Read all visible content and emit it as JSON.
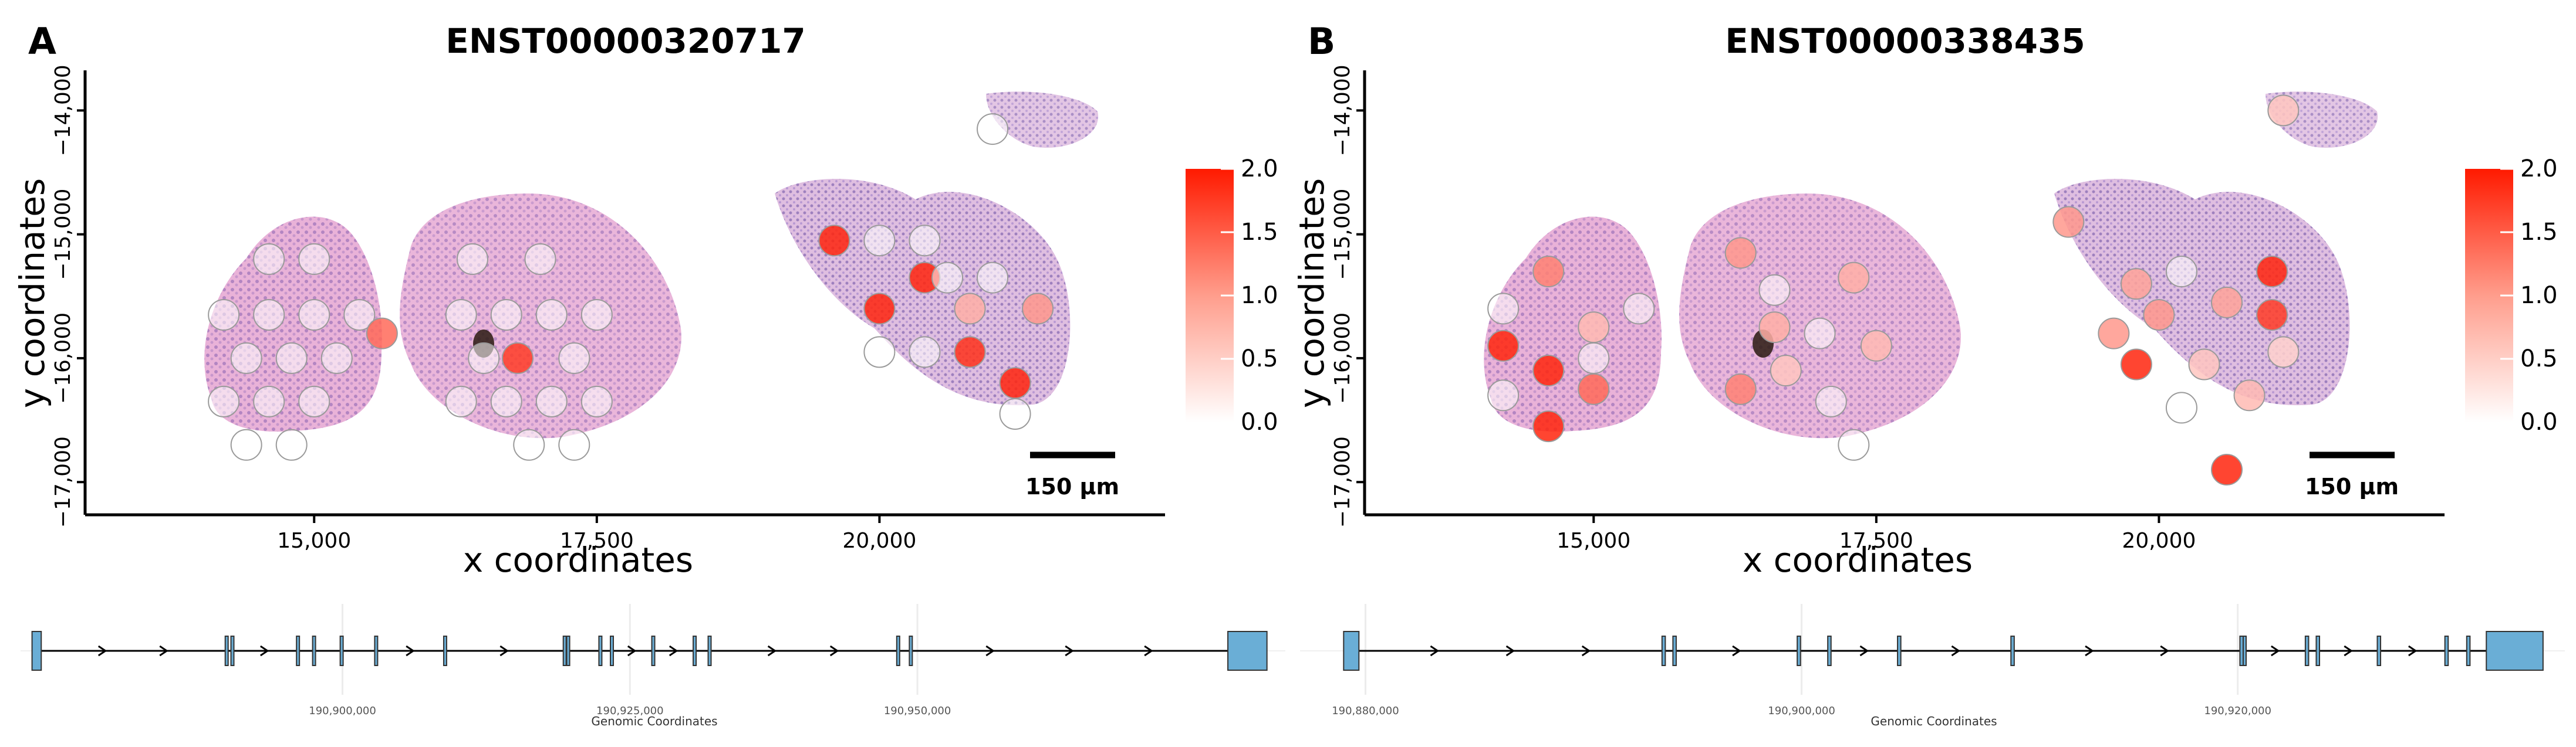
{
  "chart_data": [
    {
      "panel_label": "A",
      "type": "scatter",
      "title": "ENST00000320717",
      "xlabel": "x coordinates",
      "ylabel": "y coordinates",
      "xlim": [
        13000,
        22500
      ],
      "ylim": [
        -17250,
        -13700
      ],
      "x_ticks": [
        15000,
        17500,
        20000
      ],
      "x_tick_labels": [
        "15,000",
        "17,500",
        "20,000"
      ],
      "y_ticks": [
        -14000,
        -15000,
        -16000,
        -17000
      ],
      "y_tick_labels": [
        "−14,000",
        "−15,000",
        "−16,000",
        "−17,000"
      ],
      "colorbar": {
        "min": 0.0,
        "max": 2.0,
        "tick_values": [
          0.0,
          0.5,
          1.0,
          1.5,
          2.0
        ],
        "tick_labels": [
          "0.0",
          "0.5",
          "1.0",
          "1.5",
          "2.0"
        ],
        "low_color": "#ffffff",
        "high_color": "#ff0000"
      },
      "scalebar_label": "150 μm",
      "spots": [
        {
          "x": 14200,
          "y": -15650,
          "v": 0.0
        },
        {
          "x": 14600,
          "y": -15650,
          "v": 0.0
        },
        {
          "x": 15000,
          "y": -15650,
          "v": 0.0
        },
        {
          "x": 14400,
          "y": -16000,
          "v": 0.0
        },
        {
          "x": 14800,
          "y": -16000,
          "v": 0.0
        },
        {
          "x": 15200,
          "y": -16000,
          "v": 0.0
        },
        {
          "x": 14200,
          "y": -16350,
          "v": 0.0
        },
        {
          "x": 14600,
          "y": -16350,
          "v": 0.0
        },
        {
          "x": 15000,
          "y": -16350,
          "v": 0.0
        },
        {
          "x": 14400,
          "y": -16700,
          "v": 0.0
        },
        {
          "x": 14800,
          "y": -16700,
          "v": 0.0
        },
        {
          "x": 14600,
          "y": -15200,
          "v": 0.0
        },
        {
          "x": 15000,
          "y": -15200,
          "v": 0.0
        },
        {
          "x": 15400,
          "y": -15650,
          "v": 0.0
        },
        {
          "x": 15600,
          "y": -15800,
          "v": 1.3
        },
        {
          "x": 16300,
          "y": -15650,
          "v": 0.0
        },
        {
          "x": 16700,
          "y": -15650,
          "v": 0.0
        },
        {
          "x": 17100,
          "y": -15650,
          "v": 0.0
        },
        {
          "x": 17500,
          "y": -15650,
          "v": 0.0
        },
        {
          "x": 16500,
          "y": -16000,
          "v": 0.0
        },
        {
          "x": 16800,
          "y": -16000,
          "v": 1.7
        },
        {
          "x": 17300,
          "y": -16000,
          "v": 0.0
        },
        {
          "x": 16700,
          "y": -16350,
          "v": 0.0
        },
        {
          "x": 17100,
          "y": -16350,
          "v": 0.0
        },
        {
          "x": 17500,
          "y": -16350,
          "v": 0.0
        },
        {
          "x": 16900,
          "y": -16700,
          "v": 0.0
        },
        {
          "x": 17300,
          "y": -16700,
          "v": 0.0
        },
        {
          "x": 16300,
          "y": -16350,
          "v": 0.0
        },
        {
          "x": 16400,
          "y": -15200,
          "v": 0.0
        },
        {
          "x": 17000,
          "y": -15200,
          "v": 0.0
        },
        {
          "x": 19600,
          "y": -15050,
          "v": 1.9
        },
        {
          "x": 20400,
          "y": -15350,
          "v": 1.9
        },
        {
          "x": 20000,
          "y": -15600,
          "v": 1.9
        },
        {
          "x": 20800,
          "y": -15600,
          "v": 0.7
        },
        {
          "x": 21400,
          "y": -15600,
          "v": 0.9
        },
        {
          "x": 20800,
          "y": -15950,
          "v": 1.8
        },
        {
          "x": 21200,
          "y": -16200,
          "v": 1.9
        },
        {
          "x": 20000,
          "y": -15050,
          "v": 0.0
        },
        {
          "x": 20400,
          "y": -15050,
          "v": 0.0
        },
        {
          "x": 20600,
          "y": -15350,
          "v": 0.0
        },
        {
          "x": 21000,
          "y": -15350,
          "v": 0.0
        },
        {
          "x": 20400,
          "y": -15950,
          "v": 0.0
        },
        {
          "x": 20000,
          "y": -15950,
          "v": 0.0
        },
        {
          "x": 21200,
          "y": -16450,
          "v": 0.0
        },
        {
          "x": 21000,
          "y": -14150,
          "v": 0.0
        }
      ]
    },
    {
      "panel_label": "B",
      "type": "scatter",
      "title": "ENST00000338435",
      "xlabel": "x coordinates",
      "ylabel": "y coordinates",
      "xlim": [
        13000,
        22500
      ],
      "ylim": [
        -17250,
        -13700
      ],
      "x_ticks": [
        15000,
        17500,
        20000
      ],
      "x_tick_labels": [
        "15,000",
        "17,500",
        "20,000"
      ],
      "y_ticks": [
        -14000,
        -15000,
        -16000,
        -17000
      ],
      "y_tick_labels": [
        "−14,000",
        "−15,000",
        "−16,000",
        "−17,000"
      ],
      "colorbar": {
        "min": 0.0,
        "max": 2.0,
        "tick_values": [
          0.0,
          0.5,
          1.0,
          1.5,
          2.0
        ],
        "tick_labels": [
          "0.0",
          "0.5",
          "1.0",
          "1.5",
          "2.0"
        ],
        "low_color": "#ffffff",
        "high_color": "#ff0000"
      },
      "scalebar_label": "150 μm",
      "spots": [
        {
          "x": 14600,
          "y": -15300,
          "v": 1.1
        },
        {
          "x": 14200,
          "y": -15900,
          "v": 1.9
        },
        {
          "x": 14600,
          "y": -16100,
          "v": 1.9
        },
        {
          "x": 15000,
          "y": -16250,
          "v": 1.3
        },
        {
          "x": 14600,
          "y": -16550,
          "v": 1.9
        },
        {
          "x": 15000,
          "y": -15750,
          "v": 0.6
        },
        {
          "x": 16300,
          "y": -15150,
          "v": 0.9
        },
        {
          "x": 17300,
          "y": -15350,
          "v": 0.7
        },
        {
          "x": 16600,
          "y": -15750,
          "v": 0.7
        },
        {
          "x": 16300,
          "y": -16250,
          "v": 1.1
        },
        {
          "x": 16700,
          "y": -16100,
          "v": 0.5
        },
        {
          "x": 17500,
          "y": -15900,
          "v": 0.6
        },
        {
          "x": 19200,
          "y": -14900,
          "v": 0.9
        },
        {
          "x": 19800,
          "y": -15400,
          "v": 0.8
        },
        {
          "x": 19600,
          "y": -15800,
          "v": 0.9
        },
        {
          "x": 20000,
          "y": -15650,
          "v": 0.9
        },
        {
          "x": 20600,
          "y": -15550,
          "v": 0.8
        },
        {
          "x": 21000,
          "y": -15300,
          "v": 1.9
        },
        {
          "x": 21000,
          "y": -15650,
          "v": 1.7
        },
        {
          "x": 19800,
          "y": -16050,
          "v": 1.9
        },
        {
          "x": 20400,
          "y": -16050,
          "v": 0.5
        },
        {
          "x": 20800,
          "y": -16300,
          "v": 0.6
        },
        {
          "x": 20600,
          "y": -16900,
          "v": 1.9
        },
        {
          "x": 21100,
          "y": -15950,
          "v": 0.4
        },
        {
          "x": 21100,
          "y": -14000,
          "v": 0.5
        },
        {
          "x": 14200,
          "y": -15600,
          "v": 0.0
        },
        {
          "x": 14200,
          "y": -16300,
          "v": 0.0
        },
        {
          "x": 15000,
          "y": -16000,
          "v": 0.0
        },
        {
          "x": 15400,
          "y": -15600,
          "v": 0.0
        },
        {
          "x": 16600,
          "y": -15450,
          "v": 0.0
        },
        {
          "x": 17000,
          "y": -15800,
          "v": 0.0
        },
        {
          "x": 17100,
          "y": -16350,
          "v": 0.0
        },
        {
          "x": 17300,
          "y": -16700,
          "v": 0.0
        },
        {
          "x": 20200,
          "y": -15300,
          "v": 0.0
        },
        {
          "x": 20200,
          "y": -16400,
          "v": 0.0
        }
      ]
    }
  ],
  "gene_tracks": [
    {
      "panel": "A",
      "xlabel": "Genomic Coordinates",
      "range": [
        190872000,
        190982000
      ],
      "ticks": [
        190900000,
        190925000,
        190950000
      ],
      "tick_labels": [
        "190,900,000",
        "190,925,000",
        "190,950,000"
      ],
      "exons": [
        {
          "start": 190873000,
          "end": 190873800
        },
        {
          "start": 190889800,
          "end": 190889950
        },
        {
          "start": 190890300,
          "end": 190890450
        },
        {
          "start": 190896000,
          "end": 190896150
        },
        {
          "start": 190897400,
          "end": 190897550
        },
        {
          "start": 190899800,
          "end": 190899950
        },
        {
          "start": 190902800,
          "end": 190903000
        },
        {
          "start": 190908800,
          "end": 190908950
        },
        {
          "start": 190919200,
          "end": 190919350
        },
        {
          "start": 190919500,
          "end": 190919650
        },
        {
          "start": 190922300,
          "end": 190922450
        },
        {
          "start": 190923300,
          "end": 190923450
        },
        {
          "start": 190926900,
          "end": 190927100
        },
        {
          "start": 190930500,
          "end": 190930650
        },
        {
          "start": 190931800,
          "end": 190931950
        },
        {
          "start": 190948200,
          "end": 190948350
        },
        {
          "start": 190949300,
          "end": 190949450
        },
        {
          "start": 190977000,
          "end": 190980400
        }
      ]
    },
    {
      "panel": "B",
      "xlabel": "Genomic Coordinates",
      "range": [
        190877000,
        190935000
      ],
      "ticks": [
        190880000,
        190900000,
        190920000
      ],
      "tick_labels": [
        "190,880,000",
        "190,900,000",
        "190,920,000"
      ],
      "exons": [
        {
          "start": 190879000,
          "end": 190879700
        },
        {
          "start": 190893600,
          "end": 190893750
        },
        {
          "start": 190894100,
          "end": 190894250
        },
        {
          "start": 190899800,
          "end": 190899950
        },
        {
          "start": 190901200,
          "end": 190901350
        },
        {
          "start": 190904400,
          "end": 190904550
        },
        {
          "start": 190909600,
          "end": 190909750
        },
        {
          "start": 190920100,
          "end": 190920250
        },
        {
          "start": 190920250,
          "end": 190920350
        },
        {
          "start": 190923100,
          "end": 190923250
        },
        {
          "start": 190923600,
          "end": 190923750
        },
        {
          "start": 190926400,
          "end": 190926550
        },
        {
          "start": 190929500,
          "end": 190929650
        },
        {
          "start": 190930500,
          "end": 190930650
        },
        {
          "start": 190931400,
          "end": 190934000
        }
      ]
    }
  ]
}
